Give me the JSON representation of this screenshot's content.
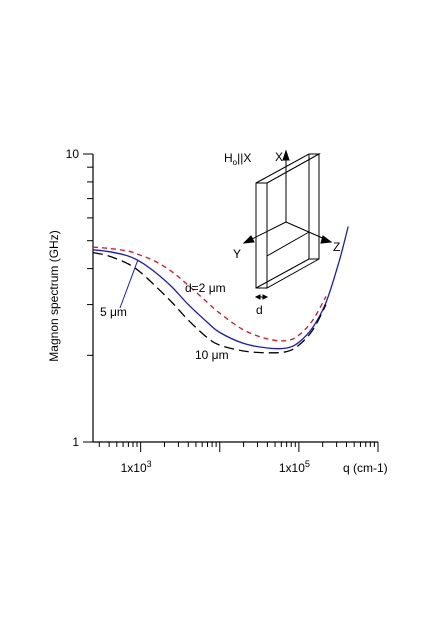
{
  "chart_data": {
    "type": "line",
    "xlabel": "q (cm-1)",
    "ylabel": "Magnon spectrum (GHz)",
    "x_scale": "log",
    "y_scale": "log",
    "xlim": [
      250,
      1000000
    ],
    "ylim": [
      1,
      10
    ],
    "x_tick_labels": [
      {
        "value": 1000,
        "base": "1x10",
        "exp": "3"
      },
      {
        "value": 100000,
        "base": "1x10",
        "exp": "5"
      }
    ],
    "y_tick_labels": [
      {
        "value": 1,
        "label": "1"
      },
      {
        "value": 10,
        "label": "10"
      }
    ],
    "grid": false,
    "series": [
      {
        "name": "d=2 μm",
        "color": "#e0101a",
        "dash": "5,4",
        "points": [
          [
            250,
            4.75
          ],
          [
            400,
            4.7
          ],
          [
            700,
            4.6
          ],
          [
            1000,
            4.45
          ],
          [
            1500,
            4.25
          ],
          [
            2500,
            3.9
          ],
          [
            4000,
            3.5
          ],
          [
            7000,
            3.05
          ],
          [
            10000,
            2.8
          ],
          [
            20000,
            2.45
          ],
          [
            40000,
            2.28
          ],
          [
            70000,
            2.25
          ],
          [
            100000,
            2.35
          ],
          [
            150000,
            2.65
          ],
          [
            220000,
            3.2
          ]
        ]
      },
      {
        "name": "5 μm",
        "color": "#1a1acc",
        "dash": "",
        "points": [
          [
            250,
            4.65
          ],
          [
            400,
            4.58
          ],
          [
            700,
            4.42
          ],
          [
            1000,
            4.22
          ],
          [
            1500,
            3.9
          ],
          [
            2500,
            3.45
          ],
          [
            4000,
            3.0
          ],
          [
            7000,
            2.6
          ],
          [
            10000,
            2.4
          ],
          [
            20000,
            2.2
          ],
          [
            40000,
            2.12
          ],
          [
            70000,
            2.12
          ],
          [
            100000,
            2.22
          ],
          [
            150000,
            2.5
          ],
          [
            220000,
            3.05
          ],
          [
            320000,
            4.2
          ],
          [
            420000,
            5.6
          ]
        ]
      },
      {
        "name": "10 μm",
        "color": "#000000",
        "dash": "10,5",
        "points": [
          [
            250,
            4.55
          ],
          [
            400,
            4.42
          ],
          [
            700,
            4.15
          ],
          [
            1000,
            3.88
          ],
          [
            1500,
            3.5
          ],
          [
            2500,
            3.05
          ],
          [
            4000,
            2.65
          ],
          [
            7000,
            2.3
          ],
          [
            10000,
            2.17
          ],
          [
            20000,
            2.07
          ],
          [
            40000,
            2.04
          ],
          [
            70000,
            2.06
          ],
          [
            100000,
            2.17
          ],
          [
            150000,
            2.45
          ],
          [
            220000,
            3.0
          ]
        ]
      }
    ],
    "annotations": [
      {
        "text": "d=2 μm",
        "color": "#e0101a"
      },
      {
        "text": "5 μm",
        "color": "#1a1acc"
      },
      {
        "text": "10 μm",
        "color": "#000000"
      }
    ],
    "inset": {
      "field_label_base": "H",
      "field_label_sub": "o",
      "field_label_rest": "||X",
      "axis_x": "X",
      "axis_y": "Y",
      "axis_z": "Z",
      "thickness": "d"
    }
  }
}
